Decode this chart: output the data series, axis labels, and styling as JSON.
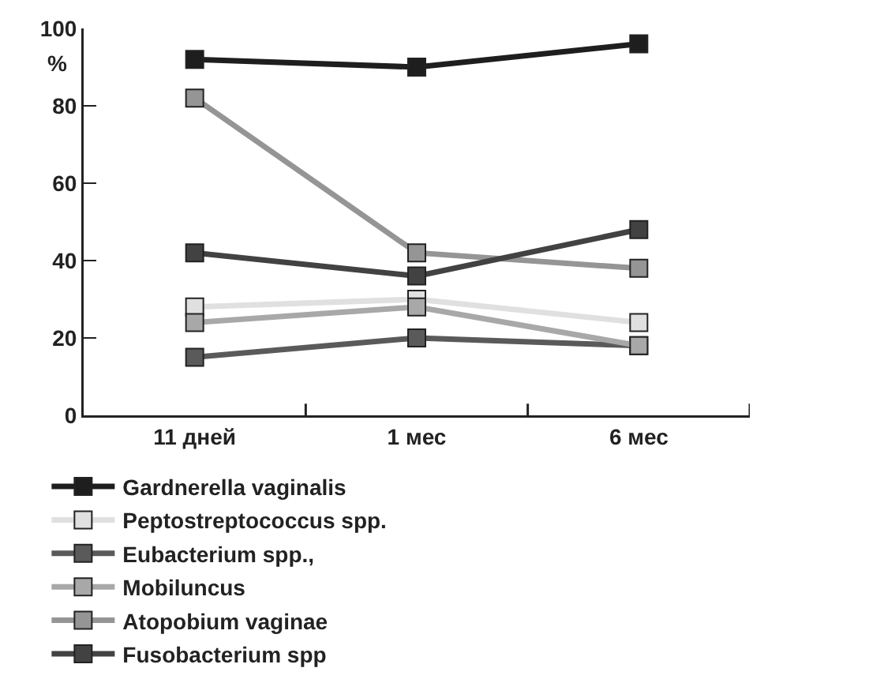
{
  "chart_data": {
    "type": "line",
    "ylabel": "%",
    "categories": [
      "11 дней",
      "1 мес",
      "6 мес"
    ],
    "ylim": [
      0,
      100
    ],
    "yticks": [
      0,
      20,
      40,
      60,
      80,
      100
    ],
    "grid": false,
    "legend": "bottom",
    "marker": "square",
    "line_style": "solid",
    "series": [
      {
        "name": "Gardnerella vaginalis",
        "color": "#1e1e1e",
        "values": [
          92,
          90,
          96
        ]
      },
      {
        "name": "Peptostreptococcus spp.",
        "color": "#e0e0e0",
        "values": [
          28,
          30,
          24
        ]
      },
      {
        "name": "Eubacterium spp.,",
        "color": "#5a5a5a",
        "values": [
          15,
          20,
          18
        ]
      },
      {
        "name": "Mobiluncus",
        "color": "#a8a8a8",
        "values": [
          24,
          28,
          18
        ]
      },
      {
        "name": "Atopobium vaginae",
        "color": "#959595",
        "values": [
          82,
          42,
          38
        ]
      },
      {
        "name": "Fusobacterium spp",
        "color": "#424242",
        "values": [
          42,
          36,
          48
        ]
      }
    ]
  }
}
